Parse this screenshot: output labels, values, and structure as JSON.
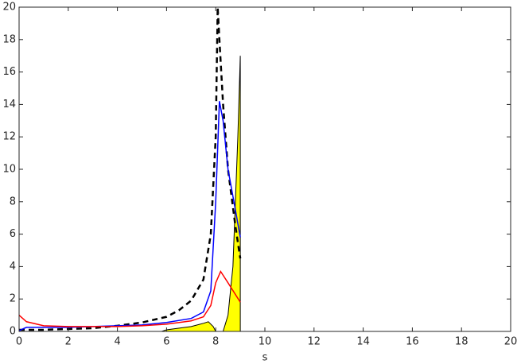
{
  "chart_data": {
    "type": "line",
    "xlabel": "s",
    "xlim": [
      0,
      20
    ],
    "ylim": [
      0,
      20
    ],
    "xticks": [
      0,
      2,
      4,
      6,
      8,
      10,
      12,
      14,
      16,
      18,
      20
    ],
    "yticks": [
      0,
      2,
      4,
      6,
      8,
      10,
      12,
      14,
      16,
      18,
      20
    ],
    "series": [
      {
        "color": "#ffff00",
        "fill": true,
        "x": [
          0,
          5.8,
          6,
          7,
          7.5,
          7.7,
          7.9,
          8.0,
          8.3,
          8.5,
          8.7,
          8.9,
          9.0
        ],
        "values": [
          0,
          0,
          0.1,
          0.3,
          0.5,
          0.6,
          0.3,
          0,
          0,
          1,
          4,
          12,
          17
        ]
      },
      {
        "color": "#000000",
        "dashed": true,
        "x": [
          0,
          1,
          2,
          3,
          4,
          5,
          6,
          6.5,
          7,
          7.5,
          7.8,
          8.0,
          8.08,
          8.15,
          8.3,
          8.5,
          8.8,
          9.0
        ],
        "values": [
          0.1,
          0.1,
          0.15,
          0.2,
          0.35,
          0.55,
          0.9,
          1.3,
          1.9,
          3.2,
          6,
          12,
          20,
          18,
          14,
          10,
          6.5,
          4.5
        ]
      },
      {
        "color": "#0000ff",
        "x": [
          0,
          0.3,
          1,
          2,
          3,
          4,
          5,
          6,
          7,
          7.5,
          7.8,
          8.0,
          8.15,
          8.3,
          8.5,
          8.8,
          9.0
        ],
        "values": [
          0.05,
          0.25,
          0.25,
          0.25,
          0.3,
          0.35,
          0.4,
          0.55,
          0.8,
          1.2,
          2.5,
          8,
          14.2,
          13,
          10,
          7.5,
          5.8
        ]
      },
      {
        "color": "#ff0000",
        "x": [
          0,
          0.3,
          1,
          2,
          3,
          4,
          5,
          6,
          7,
          7.5,
          7.8,
          8.0,
          8.2,
          8.5,
          9.0
        ],
        "values": [
          1.0,
          0.6,
          0.35,
          0.3,
          0.3,
          0.3,
          0.35,
          0.45,
          0.65,
          0.9,
          1.6,
          3.0,
          3.7,
          3.0,
          1.8
        ]
      }
    ]
  }
}
